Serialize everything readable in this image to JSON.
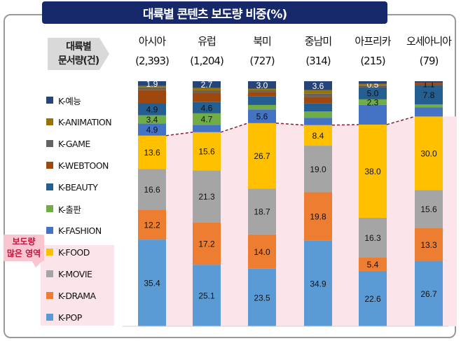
{
  "title": "대륙별 콘텐츠 보도량 비중(%)",
  "ribbon": {
    "line1": "대륙별",
    "line2": "문서량(건)"
  },
  "badge": {
    "line1": "보도량",
    "line2": "많은 영역"
  },
  "chart_data": {
    "type": "stacked-bar",
    "title": "대륙별 콘텐츠 보도량 비중(%)",
    "categories": [
      "아시아",
      "유럽",
      "북미",
      "중남미",
      "아프리카",
      "오세아니아"
    ],
    "counts": [
      "(2,393)",
      "(1,204)",
      "(727)",
      "(314)",
      "(215)",
      "(79)"
    ],
    "ylim": [
      0,
      100
    ],
    "legend_placement": "left",
    "series": [
      {
        "name": "K-POP",
        "color": "#5b9bd5",
        "values": [
          35.4,
          25.1,
          23.5,
          34.9,
          22.6,
          26.7
        ],
        "labels": [
          "35.4",
          "25.1",
          "23.5",
          "34.9",
          "22.6",
          "26.7"
        ]
      },
      {
        "name": "K-DRAMA",
        "color": "#ed7d31",
        "values": [
          12.2,
          17.2,
          14.0,
          19.8,
          5.4,
          13.3
        ],
        "labels": [
          "12.2",
          "17.2",
          "14.0",
          "19.8",
          "5.4",
          "13.3"
        ]
      },
      {
        "name": "K-MOVIE",
        "color": "#a5a5a5",
        "values": [
          16.6,
          21.3,
          18.7,
          19.0,
          16.3,
          15.6
        ],
        "labels": [
          "16.6",
          "21.3",
          "18.7",
          "19.0",
          "16.3",
          "15.6"
        ]
      },
      {
        "name": "K-FOOD",
        "color": "#ffc000",
        "values": [
          13.6,
          15.6,
          26.7,
          8.4,
          38.0,
          30.0
        ],
        "labels": [
          "13.6",
          "15.6",
          "26.7",
          "8.4",
          "38.0",
          "30.0"
        ]
      },
      {
        "name": "K-FASHION",
        "color": "#4472c4",
        "values": [
          4.9,
          3.0,
          5.6,
          3.0,
          8.0,
          3.7
        ],
        "labels": [
          "4.9",
          "",
          "5.6",
          "",
          "",
          ""
        ]
      },
      {
        "name": "K-출판",
        "color": "#70ad47",
        "values": [
          3.4,
          4.7,
          1.8,
          2.6,
          2.3,
          1.2
        ],
        "labels": [
          "3.4",
          "4.7",
          "",
          "",
          "2.3",
          ""
        ]
      },
      {
        "name": "K-BEAUTY",
        "color": "#255e91",
        "values": [
          4.9,
          4.6,
          3.5,
          3.2,
          5.0,
          7.8
        ],
        "labels": [
          "4.9",
          "4.6",
          "",
          "",
          "5.0",
          "7.8"
        ]
      },
      {
        "name": "K-WEBTOON",
        "color": "#9e480e",
        "values": [
          5.5,
          3.8,
          1.8,
          2.7,
          0.5,
          1.1
        ],
        "labels": [
          "",
          "",
          "",
          "",
          "",
          "1.1"
        ]
      },
      {
        "name": "K-GAME",
        "color": "#636363",
        "values": [
          1.0,
          1.0,
          0.7,
          1.3,
          0.4,
          0
        ],
        "labels": [
          "",
          "",
          "",
          "",
          "",
          ""
        ]
      },
      {
        "name": "K-ANIMATION",
        "color": "#997300",
        "values": [
          0.6,
          1.0,
          0.7,
          1.5,
          0.5,
          0
        ],
        "labels": [
          "",
          "",
          "",
          "",
          "0.5",
          ""
        ]
      },
      {
        "name": "K-예능",
        "color": "#264478",
        "values": [
          1.9,
          2.7,
          3.0,
          3.6,
          1.0,
          0.6
        ],
        "labels": [
          "1.9",
          "2.7",
          "3.0",
          "3.6",
          "",
          ""
        ]
      }
    ],
    "highlight_area": {
      "label": "보도량 많은 영역",
      "series": [
        "K-POP",
        "K-DRAMA",
        "K-MOVIE",
        "K-FOOD"
      ],
      "color": "#fbe4ea",
      "line_color": "#8b1a2b"
    }
  }
}
